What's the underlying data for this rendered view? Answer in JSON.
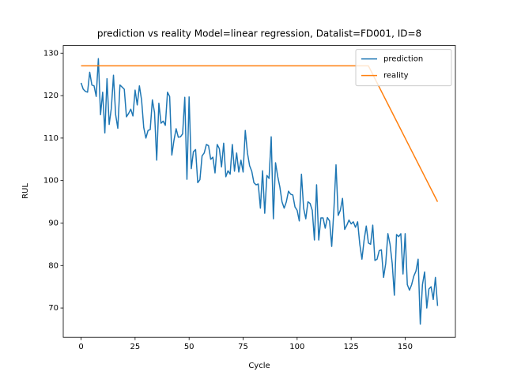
{
  "chart_data": {
    "type": "line",
    "title": "prediction vs reality Model=linear regression, Datalist=FD001, ID=8",
    "xlabel": "Cycle",
    "ylabel": "RUL",
    "xlim": [
      -8.25,
      173.25
    ],
    "ylim": [
      63.1,
      131.8
    ],
    "xticks": [
      0,
      25,
      50,
      75,
      100,
      125,
      150
    ],
    "yticks": [
      70,
      80,
      90,
      100,
      110,
      120,
      130
    ],
    "legend": "upper right",
    "series": [
      {
        "name": "prediction",
        "color": "#1f77b4",
        "x": [
          0,
          1,
          2,
          3,
          4,
          5,
          6,
          7,
          8,
          9,
          10,
          11,
          12,
          13,
          14,
          15,
          16,
          17,
          18,
          19,
          20,
          21,
          22,
          23,
          24,
          25,
          26,
          27,
          28,
          29,
          30,
          31,
          32,
          33,
          34,
          35,
          36,
          37,
          38,
          39,
          40,
          41,
          42,
          43,
          44,
          45,
          46,
          47,
          48,
          49,
          50,
          51,
          52,
          53,
          54,
          55,
          56,
          57,
          58,
          59,
          60,
          61,
          62,
          63,
          64,
          65,
          66,
          67,
          68,
          69,
          70,
          71,
          72,
          73,
          74,
          75,
          76,
          77,
          78,
          79,
          80,
          81,
          82,
          83,
          84,
          85,
          86,
          87,
          88,
          89,
          90,
          91,
          92,
          93,
          94,
          95,
          96,
          97,
          98,
          99,
          100,
          101,
          102,
          103,
          104,
          105,
          106,
          107,
          108,
          109,
          110,
          111,
          112,
          113,
          114,
          115,
          116,
          117,
          118,
          119,
          120,
          121,
          122,
          123,
          124,
          125,
          126,
          127,
          128,
          129,
          130,
          131,
          132,
          133,
          134,
          135,
          136,
          137,
          138,
          139,
          140,
          141,
          142,
          143,
          144,
          145,
          146,
          147,
          148,
          149,
          150,
          151,
          152,
          153,
          154,
          155,
          156,
          157,
          158,
          159,
          160,
          161,
          162,
          163,
          164,
          165
        ],
        "values": [
          123,
          121.5,
          121,
          120.8,
          125.5,
          122.5,
          122.3,
          119.8,
          128.7,
          115.5,
          120.8,
          111.2,
          124,
          113.2,
          117,
          124.8,
          115.5,
          112.3,
          122.5,
          122,
          121.5,
          115,
          115.8,
          116.8,
          115.2,
          121.3,
          117.8,
          122.3,
          119,
          112.5,
          110,
          111.8,
          112,
          119,
          116,
          104.8,
          118.2,
          113.5,
          114,
          113,
          120.8,
          119.8,
          106,
          109.5,
          112.2,
          110.2,
          110.3,
          111,
          119.6,
          100.3,
          119.7,
          102.8,
          106.8,
          107.3,
          99.5,
          100.2,
          105.8,
          106.5,
          108.5,
          108.2,
          105,
          105.5,
          101.8,
          108.5,
          107.5,
          103.2,
          108.8,
          100.9,
          102.3,
          101.5,
          108.5,
          102.2,
          106.5,
          102,
          104.8,
          102,
          111.8,
          106.5,
          103.5,
          102.2,
          99.5,
          99,
          99.2,
          93.5,
          102.3,
          92.3,
          101.2,
          100.5,
          110.3,
          91,
          104.2,
          101,
          98.5,
          95,
          93.5,
          95,
          97.5,
          96.8,
          96.6,
          93.8,
          93,
          90.5,
          101.5,
          93.5,
          91,
          95,
          94.6,
          93,
          86,
          99,
          86,
          91.2,
          91.2,
          88.8,
          91.3,
          90.5,
          84.5,
          93,
          103.7,
          91.8,
          93,
          95.8,
          88.5,
          89.5,
          90.7,
          89.8,
          90.3,
          89,
          90.3,
          85,
          81.5,
          86,
          89.3,
          85.3,
          85,
          89.5,
          81.2,
          81.5,
          83.5,
          83.7,
          77.2,
          80.5,
          87.5,
          85,
          80.5,
          73,
          87.3,
          86.8,
          87.5,
          78,
          87.5,
          75.5,
          74.2,
          75.5,
          77.5,
          78.7,
          81.5,
          66.2,
          75.5,
          78.5,
          70,
          74.5,
          75,
          72,
          77.2,
          70.5
        ]
      },
      {
        "name": "reality",
        "color": "#ff7f0e",
        "x": [
          0,
          133,
          165
        ],
        "values": [
          127,
          127,
          95
        ]
      }
    ]
  }
}
